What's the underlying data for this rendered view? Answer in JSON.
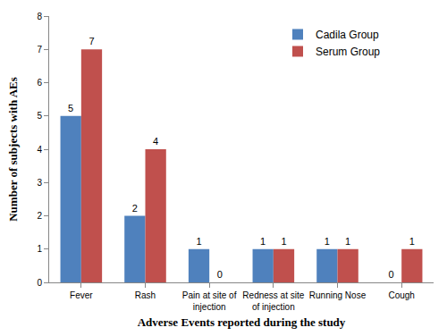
{
  "chart_data": {
    "type": "bar",
    "xlabel": "Adverse Events reported during the study",
    "ylabel": "Number of subjects with AEs",
    "categories": [
      "Fever",
      "Rash",
      "Pain at site of injection",
      "Redness at site of injection",
      "Running Nose",
      "Cough"
    ],
    "series": [
      {
        "name": "Cadila Group",
        "color": "#4f81bd",
        "values": [
          5,
          2,
          1,
          1,
          1,
          0
        ]
      },
      {
        "name": "Serum Group",
        "color": "#c0504d",
        "values": [
          7,
          4,
          0,
          1,
          1,
          1
        ]
      }
    ],
    "ylim": [
      0,
      8
    ],
    "yticks": [
      0,
      1,
      2,
      3,
      4,
      5,
      6,
      7,
      8
    ],
    "grid": false,
    "legend": "upper right",
    "data_labels": true
  }
}
